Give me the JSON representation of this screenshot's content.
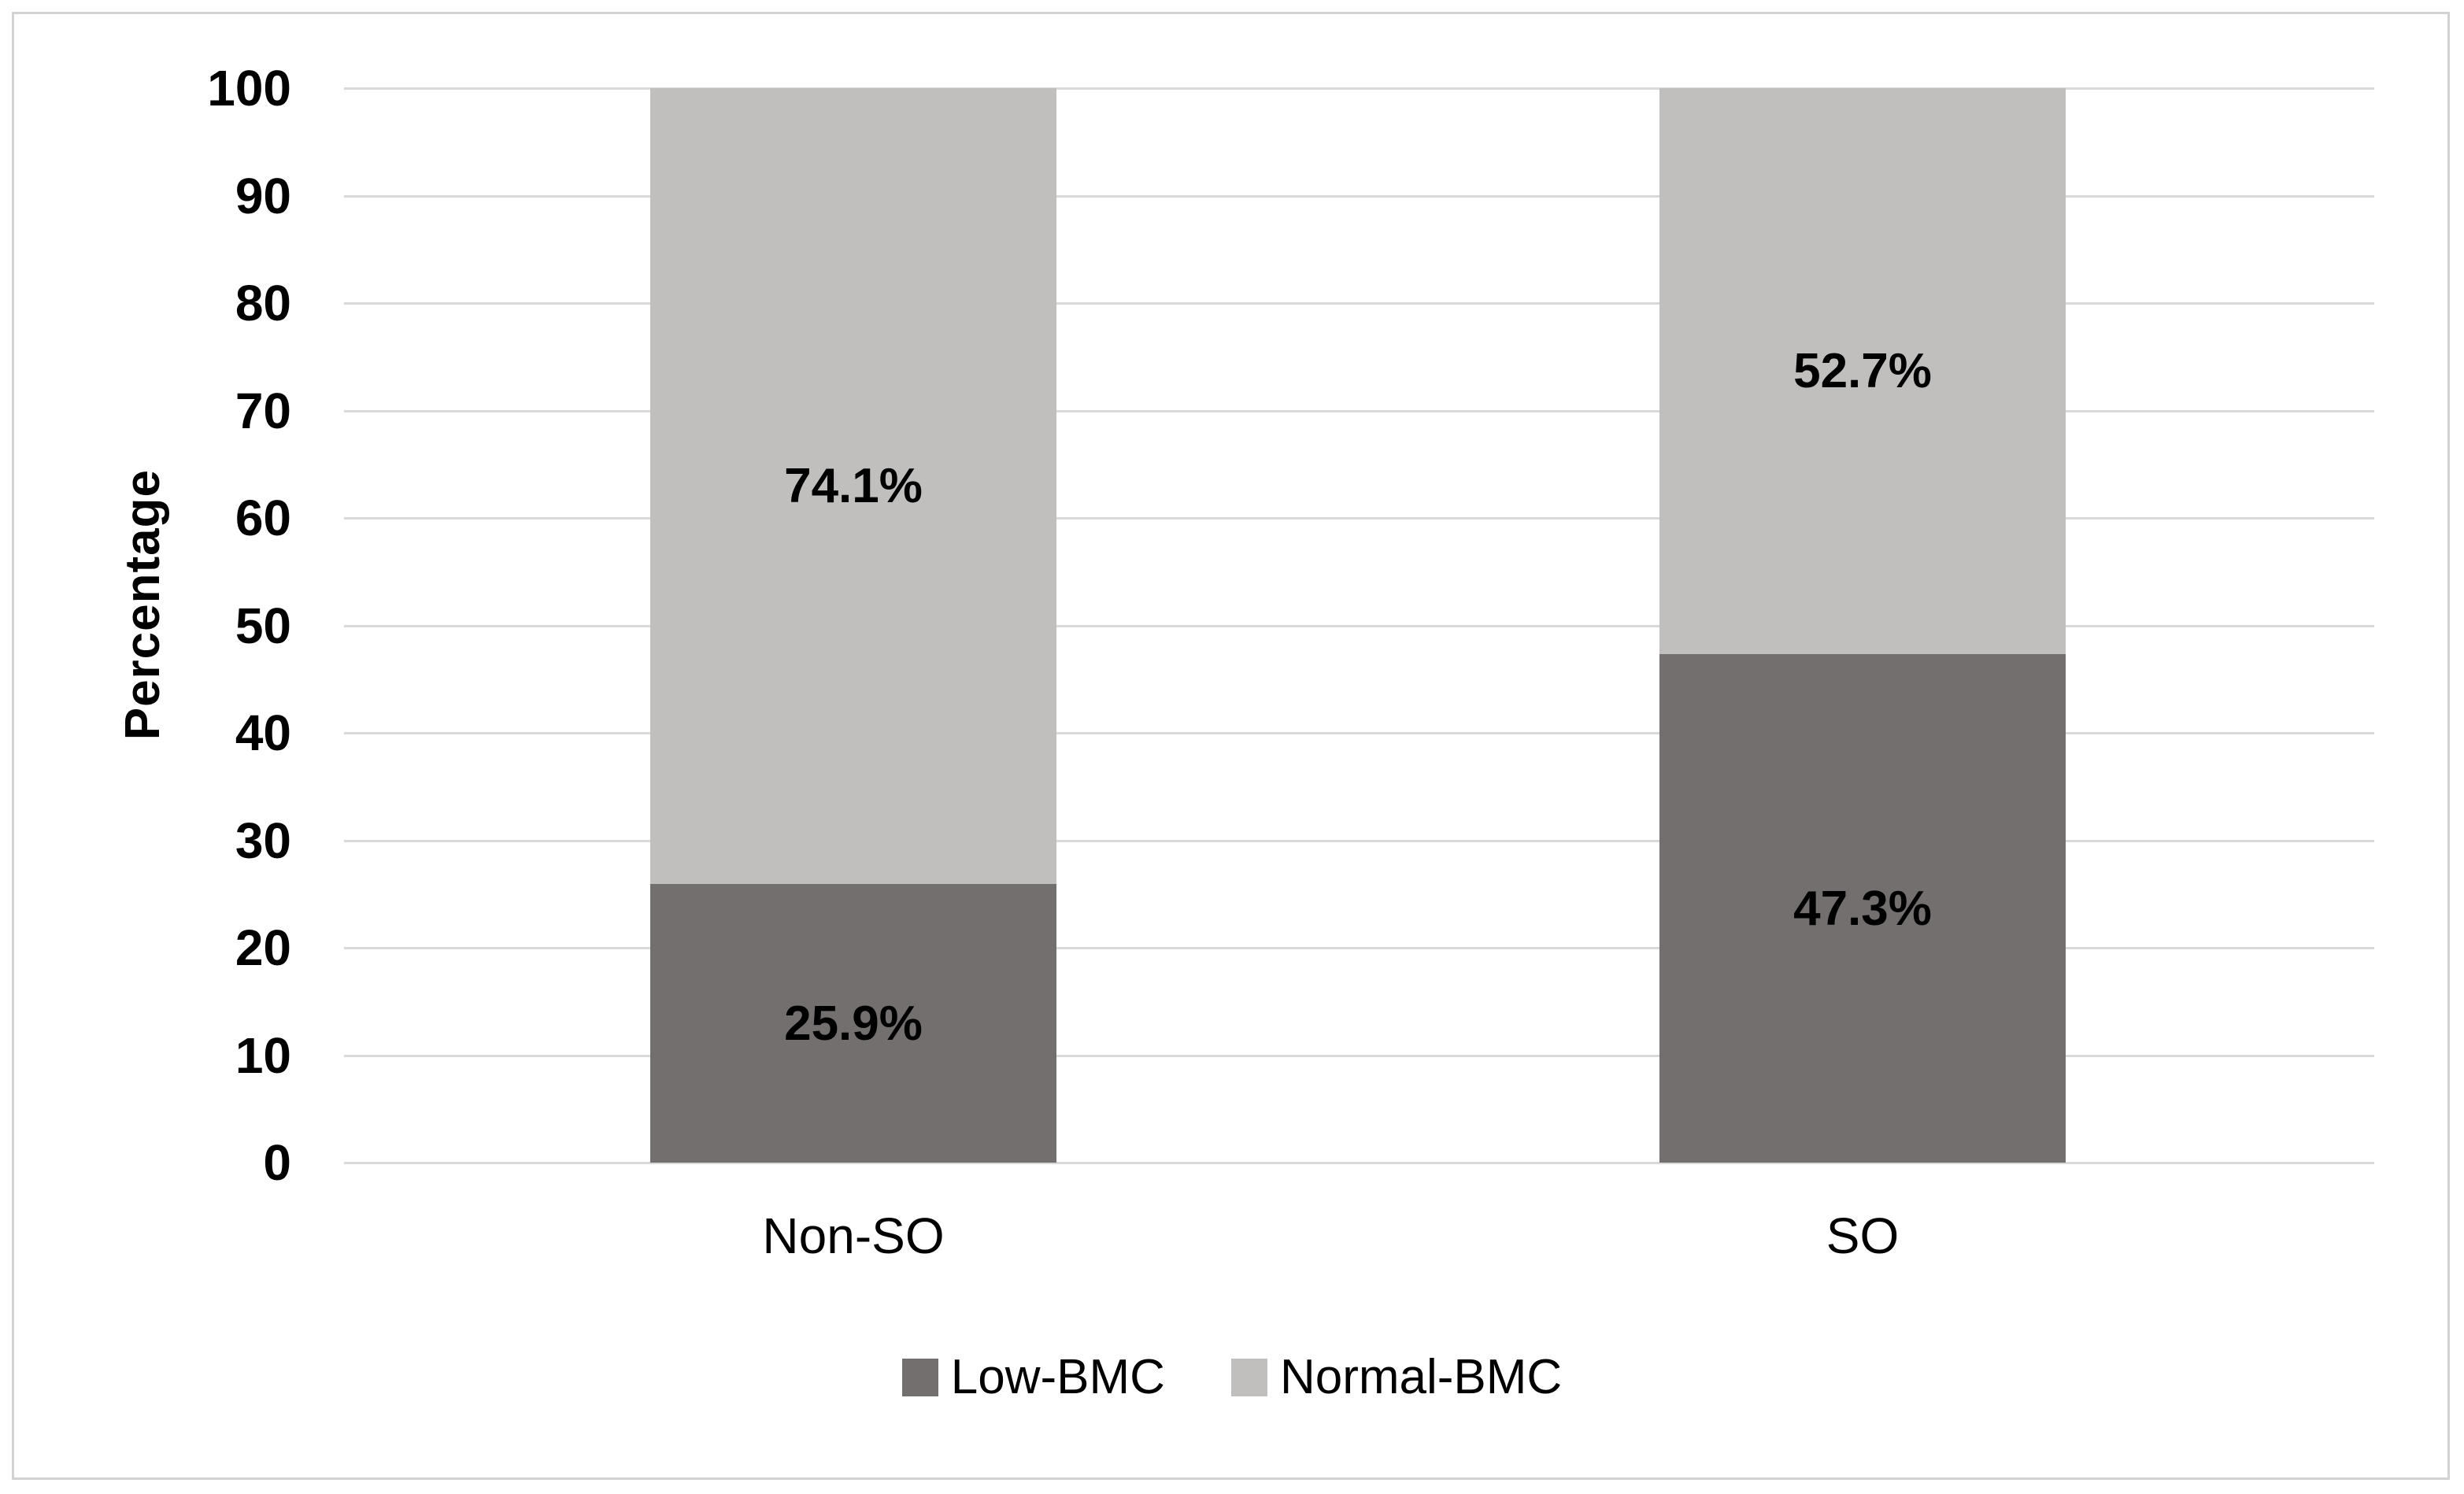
{
  "chart_data": {
    "type": "bar",
    "subtype": "stacked-column",
    "title": "",
    "categories": [
      "Non-SO",
      "SO"
    ],
    "series": [
      {
        "name": "Low-BMC",
        "color": "#726F6E",
        "values": [
          25.9,
          47.3
        ],
        "data_labels": [
          "25.9%",
          "47.3%"
        ]
      },
      {
        "name": "Normal-BMC",
        "color": "#C0BFBE",
        "values": [
          74.1,
          52.7
        ],
        "data_labels": [
          "74.1%",
          "52.7%"
        ]
      }
    ],
    "xlabel": "",
    "ylabel": "Percentage",
    "ylim": [
      0,
      100
    ],
    "ytick_step": 10,
    "ytick_labels": [
      "0",
      "10",
      "20",
      "30",
      "40",
      "50",
      "60",
      "70",
      "80",
      "90",
      "100"
    ],
    "grid": true,
    "gridline_color": "#D9D9D9",
    "legend_position": "bottom",
    "legend": [
      "Low-BMC",
      "Normal-BMC"
    ]
  },
  "colors": {
    "background": "#FFFFFF",
    "frame_border": "#D2D2D2",
    "text": "#000000"
  }
}
